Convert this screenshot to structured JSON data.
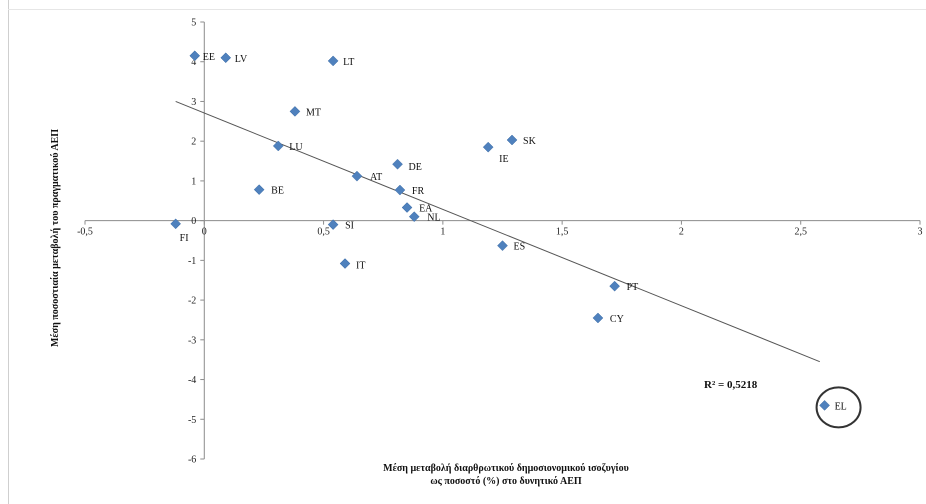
{
  "chart_data": {
    "type": "scatter",
    "xlim": [
      -0.5,
      3
    ],
    "ylim": [
      -6,
      5
    ],
    "x_ticks": [
      -0.5,
      0,
      0.5,
      1,
      1.5,
      2,
      2.5,
      3
    ],
    "x_tick_labels": [
      "-0,5",
      "0",
      "0,5",
      "1",
      "1,5",
      "2",
      "2,5",
      "3"
    ],
    "y_ticks": [
      -6,
      -5,
      -4,
      -3,
      -2,
      -1,
      0,
      1,
      2,
      3,
      4,
      5
    ],
    "y_tick_labels": [
      "-6",
      "-5",
      "-4",
      "-3",
      "-2",
      "-1",
      "0",
      "1",
      "2",
      "3",
      "4",
      "5"
    ],
    "grid": false,
    "xlabel_line1": "Μέση  μεταβολή  διαρθρωτικού  δημοσιονομικού ισοζυγίου",
    "xlabel_line2": "ως ποσοστό (%) στο δυνητικό ΑΕΠ",
    "ylabel": "Μέση ποσοστιαία μεταβολή του πραγματικού ΑΕΠ",
    "r_squared_label": "R² = 0,5218",
    "marker_color": "#4f81bd",
    "trendline_color": "#555555",
    "trendline": {
      "x0": -0.12,
      "y0": 3.0,
      "x1": 2.58,
      "y1": -3.55
    },
    "highlight_circle_label": "EL",
    "points": [
      {
        "label": "EE",
        "x": -0.04,
        "y": 4.15
      },
      {
        "label": "LV",
        "x": 0.09,
        "y": 4.1
      },
      {
        "label": "LT",
        "x": 0.54,
        "y": 4.02
      },
      {
        "label": "MT",
        "x": 0.38,
        "y": 2.75
      },
      {
        "label": "LU",
        "x": 0.31,
        "y": 1.88
      },
      {
        "label": "SK",
        "x": 1.29,
        "y": 2.03
      },
      {
        "label": "IE",
        "x": 1.19,
        "y": 1.85
      },
      {
        "label": "DE",
        "x": 0.81,
        "y": 1.42
      },
      {
        "label": "AT",
        "x": 0.64,
        "y": 1.12
      },
      {
        "label": "BE",
        "x": 0.23,
        "y": 0.78
      },
      {
        "label": "FR",
        "x": 0.82,
        "y": 0.77
      },
      {
        "label": "EA",
        "x": 0.85,
        "y": 0.33
      },
      {
        "label": "NL",
        "x": 0.88,
        "y": 0.1
      },
      {
        "label": "SI",
        "x": 0.54,
        "y": -0.1
      },
      {
        "label": "FI",
        "x": -0.12,
        "y": -0.08
      },
      {
        "label": "ES",
        "x": 1.25,
        "y": -0.63
      },
      {
        "label": "IT",
        "x": 0.59,
        "y": -1.08
      },
      {
        "label": "PT",
        "x": 1.72,
        "y": -1.65
      },
      {
        "label": "CY",
        "x": 1.65,
        "y": -2.45
      },
      {
        "label": "EL",
        "x": 2.6,
        "y": -4.65
      }
    ]
  }
}
